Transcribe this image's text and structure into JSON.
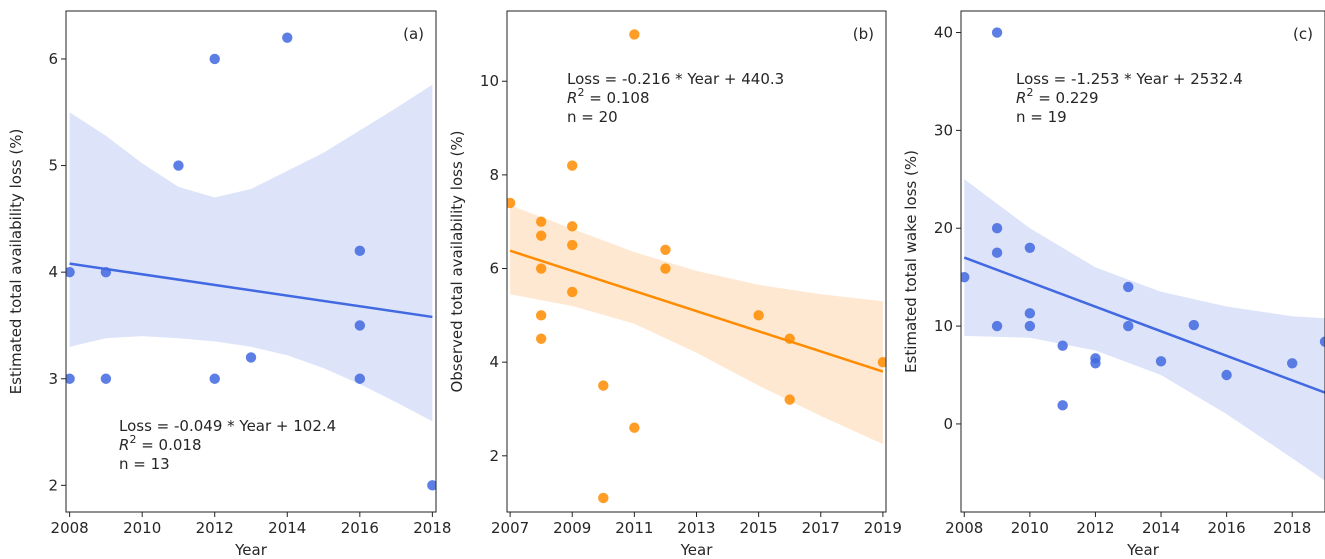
{
  "chart_data": [
    {
      "type": "scatter",
      "panel_label": "(a)",
      "xlabel": "Year",
      "ylabel": "Estimated total availability loss (%)",
      "xlim": [
        2007.9,
        2018.1
      ],
      "ylim": [
        1.75,
        6.45
      ],
      "xticks": [
        2008,
        2010,
        2012,
        2014,
        2016,
        2018
      ],
      "yticks": [
        2,
        3,
        4,
        5,
        6
      ],
      "color": "#4169e1",
      "band_color": "#dde3f9",
      "annotation": [
        "Loss = -0.049 * Year + 102.4",
        "R² = 0.018",
        "n = 13"
      ],
      "annotation_pos": "bottom-left",
      "points": [
        [
          2008,
          4.0
        ],
        [
          2008,
          3.0
        ],
        [
          2009,
          4.0
        ],
        [
          2009,
          3.0
        ],
        [
          2011,
          5.0
        ],
        [
          2012,
          6.0
        ],
        [
          2012,
          3.0
        ],
        [
          2013,
          3.2
        ],
        [
          2014,
          6.2
        ],
        [
          2016,
          4.2
        ],
        [
          2016,
          3.5
        ],
        [
          2016,
          3.0
        ],
        [
          2018,
          2.0
        ]
      ],
      "fit": {
        "x": [
          2008,
          2018
        ],
        "y": [
          4.08,
          3.58
        ]
      },
      "band": {
        "x": [
          2008,
          2009,
          2010,
          2011,
          2012,
          2013,
          2014,
          2015,
          2016,
          2017,
          2018
        ],
        "lower": [
          3.3,
          3.38,
          3.4,
          3.38,
          3.35,
          3.3,
          3.22,
          3.1,
          2.95,
          2.78,
          2.6
        ],
        "upper": [
          5.5,
          5.28,
          5.02,
          4.8,
          4.7,
          4.78,
          4.95,
          5.12,
          5.33,
          5.54,
          5.76
        ]
      }
    },
    {
      "type": "scatter",
      "panel_label": "(b)",
      "xlabel": "Year",
      "ylabel": "Observed total availability loss (%)",
      "xlim": [
        2006.9,
        2019.1
      ],
      "ylim": [
        0.8,
        11.5
      ],
      "xticks": [
        2007,
        2009,
        2011,
        2013,
        2015,
        2017,
        2019
      ],
      "yticks": [
        2,
        4,
        6,
        8,
        10
      ],
      "color": "#ff8c00",
      "band_color": "#ffe8d1",
      "annotation": [
        "Loss = -0.216 * Year + 440.3",
        "R² = 0.108",
        "n = 20"
      ],
      "annotation_pos": "top-left",
      "points": [
        [
          2007,
          7.4
        ],
        [
          2008,
          7.0
        ],
        [
          2008,
          6.7
        ],
        [
          2008,
          6.0
        ],
        [
          2008,
          5.0
        ],
        [
          2008,
          4.5
        ],
        [
          2009,
          8.2
        ],
        [
          2009,
          6.9
        ],
        [
          2009,
          6.5
        ],
        [
          2009,
          5.5
        ],
        [
          2010,
          3.5
        ],
        [
          2010,
          1.1
        ],
        [
          2011,
          11.0
        ],
        [
          2011,
          2.6
        ],
        [
          2012,
          6.4
        ],
        [
          2012,
          6.0
        ],
        [
          2015,
          5.0
        ],
        [
          2016,
          4.5
        ],
        [
          2016,
          3.2
        ],
        [
          2019,
          4.0
        ]
      ],
      "fit": {
        "x": [
          2007,
          2019
        ],
        "y": [
          6.38,
          3.8
        ]
      },
      "band": {
        "x": [
          2007,
          2009,
          2011,
          2013,
          2015,
          2017,
          2019
        ],
        "lower": [
          5.45,
          5.2,
          4.82,
          4.2,
          3.5,
          2.85,
          2.25
        ],
        "upper": [
          7.35,
          6.85,
          6.35,
          5.95,
          5.65,
          5.45,
          5.3
        ]
      }
    },
    {
      "type": "scatter",
      "panel_label": "(c)",
      "xlabel": "Year",
      "ylabel": "Estimated total wake loss (%)",
      "xlim": [
        2007.9,
        2019.0
      ],
      "ylim": [
        -9.0,
        42.2
      ],
      "xticks": [
        2008,
        2010,
        2012,
        2014,
        2016,
        2018
      ],
      "yticks": [
        0,
        10,
        20,
        30,
        40
      ],
      "color": "#4169e1",
      "band_color": "#dde3f9",
      "annotation": [
        "Loss = -1.253 * Year + 2532.4",
        "R² = 0.229",
        "n = 19"
      ],
      "annotation_pos": "top-left",
      "points": [
        [
          2008,
          15.0
        ],
        [
          2009,
          40.0
        ],
        [
          2009,
          20.0
        ],
        [
          2009,
          17.5
        ],
        [
          2009,
          10.0
        ],
        [
          2010,
          18.0
        ],
        [
          2010,
          11.3
        ],
        [
          2010,
          10.0
        ],
        [
          2011,
          8.0
        ],
        [
          2011,
          1.9
        ],
        [
          2012,
          6.7
        ],
        [
          2012,
          6.2
        ],
        [
          2013,
          14.0
        ],
        [
          2013,
          10.0
        ],
        [
          2014,
          6.4
        ],
        [
          2015,
          10.1
        ],
        [
          2016,
          5.0
        ],
        [
          2018,
          6.2
        ],
        [
          2019,
          8.4
        ]
      ],
      "fit": {
        "x": [
          2008,
          2019
        ],
        "y": [
          17.0,
          3.2
        ]
      },
      "band": {
        "x": [
          2008,
          2010,
          2012,
          2014,
          2016,
          2018,
          2019
        ],
        "lower": [
          9.0,
          8.8,
          7.5,
          5.0,
          1.0,
          -3.5,
          -5.8
        ],
        "upper": [
          25.0,
          20.0,
          16.0,
          13.5,
          12.0,
          11.0,
          10.8
        ]
      }
    }
  ]
}
